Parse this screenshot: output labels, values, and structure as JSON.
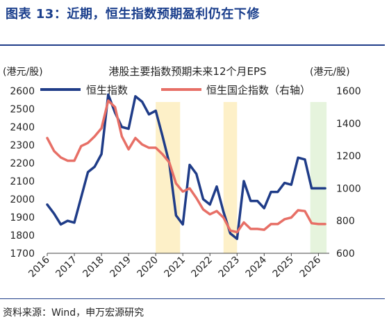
{
  "figure": {
    "title": "图表 13：近期，恒生指数预期盈利仍在下修",
    "source": "资料来源：Wind，申万宏源研究"
  },
  "chart_data": {
    "type": "line",
    "title": "港股主要指数预期未来12个月EPS",
    "y_left_unit": "(港元/股)",
    "y_right_unit": "(港元/股)",
    "x_ticks": [
      "2016",
      "2017",
      "2018",
      "2019",
      "2020",
      "2021",
      "2022",
      "2023",
      "2024",
      "2025",
      "2026"
    ],
    "xlim": [
      2016,
      2026.4
    ],
    "ylim_left": [
      1700,
      2600
    ],
    "yticks_left": [
      1700,
      1800,
      1900,
      2000,
      2100,
      2200,
      2300,
      2400,
      2500,
      2600
    ],
    "ylim_right": [
      600,
      1600
    ],
    "yticks_right": [
      600,
      800,
      1000,
      1200,
      1400,
      1600
    ],
    "legend_position": "top",
    "grid": false,
    "colors": {
      "shading_yellow": "#fdf0c8",
      "shading_green": "#e6f4dd"
    },
    "shaded_periods": [
      {
        "start": 2020.0,
        "end": 2020.9,
        "color": "yellow"
      },
      {
        "start": 2022.5,
        "end": 2023.0,
        "color": "yellow"
      },
      {
        "start": 2025.7,
        "end": 2026.3,
        "color": "green"
      }
    ],
    "series": [
      {
        "name": "恒生指数",
        "axis": "left",
        "color": "#1f3c88",
        "x": [
          2016.0,
          2016.25,
          2016.5,
          2016.75,
          2017.0,
          2017.25,
          2017.5,
          2017.75,
          2018.0,
          2018.25,
          2018.5,
          2018.75,
          2019.0,
          2019.25,
          2019.5,
          2019.75,
          2020.0,
          2020.25,
          2020.5,
          2020.75,
          2021.0,
          2021.25,
          2021.5,
          2021.75,
          2022.0,
          2022.25,
          2022.5,
          2022.75,
          2023.0,
          2023.25,
          2023.5,
          2023.75,
          2024.0,
          2024.25,
          2024.5,
          2024.75,
          2025.0,
          2025.25,
          2025.5,
          2025.75,
          2026.0,
          2026.25
        ],
        "values": [
          1970,
          1920,
          1860,
          1880,
          1870,
          2010,
          2150,
          2180,
          2250,
          2580,
          2480,
          2400,
          2390,
          2570,
          2540,
          2470,
          2490,
          2350,
          2200,
          1910,
          1860,
          2190,
          2140,
          2000,
          1970,
          2070,
          1930,
          1810,
          1780,
          2100,
          1990,
          1990,
          1950,
          2040,
          2040,
          2090,
          2080,
          2230,
          2220,
          2060,
          2060,
          2060
        ]
      },
      {
        "name": "恒生国企指数（右轴）",
        "axis": "right",
        "color": "#e76f66",
        "x": [
          2016.0,
          2016.25,
          2016.5,
          2016.75,
          2017.0,
          2017.25,
          2017.5,
          2017.75,
          2018.0,
          2018.25,
          2018.5,
          2018.75,
          2019.0,
          2019.25,
          2019.5,
          2019.75,
          2020.0,
          2020.25,
          2020.5,
          2020.75,
          2021.0,
          2021.25,
          2021.5,
          2021.75,
          2022.0,
          2022.25,
          2022.5,
          2022.75,
          2023.0,
          2023.25,
          2023.5,
          2023.75,
          2024.0,
          2024.25,
          2024.5,
          2024.75,
          2025.0,
          2025.25,
          2025.5,
          2025.75,
          2026.0,
          2026.25
        ],
        "values": [
          1310,
          1230,
          1190,
          1170,
          1170,
          1260,
          1280,
          1320,
          1370,
          1540,
          1500,
          1320,
          1240,
          1310,
          1270,
          1250,
          1250,
          1210,
          1160,
          1030,
          980,
          1000,
          940,
          870,
          840,
          860,
          820,
          740,
          730,
          790,
          750,
          750,
          745,
          780,
          780,
          810,
          820,
          865,
          860,
          785,
          780,
          780
        ]
      }
    ]
  }
}
